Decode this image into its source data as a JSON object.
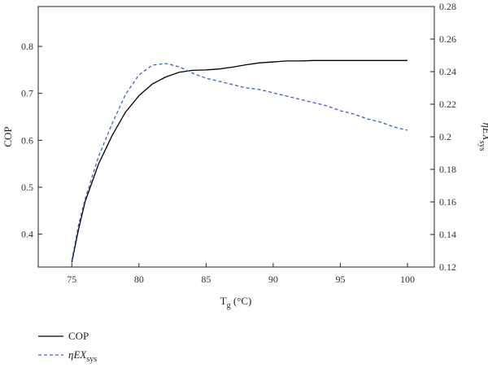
{
  "chart_data": {
    "type": "line",
    "xlabel": "T",
    "xlabel_sub": "g",
    "xlabel_unit": " (°C)",
    "ylabel_left": "COP",
    "ylabel_right": "ηEX",
    "ylabel_right_sub": "sys",
    "xlim": [
      72.5,
      102
    ],
    "ylim_left": [
      0.33,
      0.885
    ],
    "ylim_right": [
      0.12,
      0.28
    ],
    "xticks": [
      75,
      80,
      85,
      90,
      95,
      100
    ],
    "yticks_left": [
      0.4,
      0.5,
      0.6,
      0.7,
      0.8
    ],
    "yticks_right": [
      0.12,
      0.14,
      0.16,
      0.18,
      0.2,
      0.22,
      0.24,
      0.26,
      0.28
    ],
    "grid": false,
    "legend_position": "bottom-left, below plot",
    "series": [
      {
        "name": "COP",
        "axis": "left",
        "color": "#000000",
        "style": "solid",
        "x": [
          75,
          75.5,
          76,
          77,
          78,
          79,
          80,
          81,
          82,
          83,
          84,
          85,
          86,
          87,
          88,
          89,
          90,
          91,
          92,
          93,
          94,
          95,
          96,
          97,
          98,
          99,
          100
        ],
        "y": [
          0.34,
          0.41,
          0.47,
          0.55,
          0.61,
          0.66,
          0.695,
          0.72,
          0.735,
          0.745,
          0.749,
          0.75,
          0.752,
          0.756,
          0.761,
          0.765,
          0.767,
          0.769,
          0.769,
          0.77,
          0.77,
          0.77,
          0.77,
          0.77,
          0.77,
          0.77,
          0.77
        ]
      },
      {
        "name": "ηEX",
        "name_sub": "sys",
        "axis": "right",
        "color": "#3a5fc8",
        "style": "dashed",
        "x": [
          75,
          75.5,
          76,
          77,
          78,
          79,
          80,
          81,
          82,
          83,
          84,
          85,
          86,
          87,
          88,
          89,
          90,
          91,
          92,
          93,
          94,
          95,
          96,
          97,
          98,
          99,
          100
        ],
        "y": [
          0.124,
          0.146,
          0.162,
          0.188,
          0.208,
          0.226,
          0.238,
          0.244,
          0.245,
          0.243,
          0.239,
          0.236,
          0.234,
          0.232,
          0.23,
          0.229,
          0.227,
          0.225,
          0.223,
          0.221,
          0.219,
          0.216,
          0.214,
          0.211,
          0.209,
          0.206,
          0.204
        ]
      }
    ]
  }
}
